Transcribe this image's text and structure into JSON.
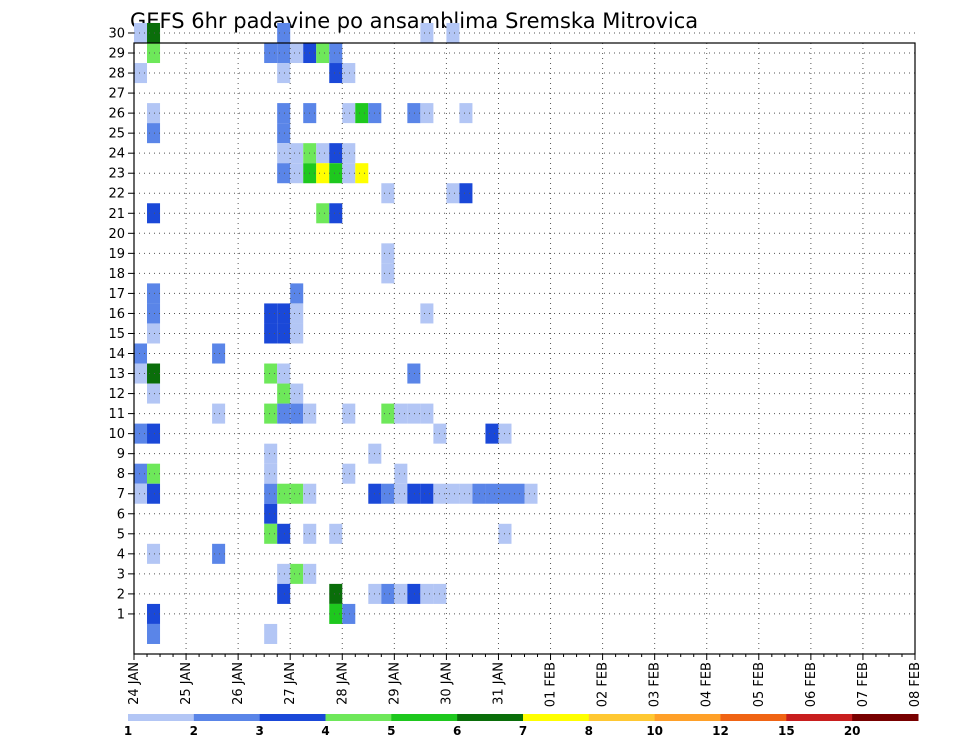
{
  "chart_data": {
    "type": "heatmap",
    "title": "GEFS 6hr padavine po ansamblima Sremska Mitrovica",
    "xlabel": "",
    "ylabel": "",
    "x_ticks": [
      "24 JAN",
      "25 JAN",
      "26 JAN",
      "27 JAN",
      "28 JAN",
      "29 JAN",
      "30 JAN",
      "31 JAN",
      "01 FEB",
      "02 FEB",
      "03 FEB",
      "04 FEB",
      "05 FEB",
      "06 FEB",
      "07 FEB",
      "08 FEB"
    ],
    "y_ticks": [
      1,
      2,
      3,
      4,
      5,
      6,
      7,
      8,
      9,
      10,
      11,
      12,
      13,
      14,
      15,
      16,
      17,
      18,
      19,
      20,
      21,
      22,
      23,
      24,
      25,
      26,
      27,
      28,
      29,
      30
    ],
    "x_step": "6hr",
    "grid": true,
    "legend": {
      "position": "bottom",
      "levels": [
        "1",
        "2",
        "3",
        "4",
        "5",
        "6",
        "7",
        "8",
        "10",
        "12",
        "15",
        "20"
      ],
      "colors": [
        "#b3c6f5",
        "#5a85e8",
        "#1a48d8",
        "#6ee85a",
        "#1ec81e",
        "#0a6e0a",
        "#ffff00",
        "#ffc832",
        "#ffa028",
        "#f06414",
        "#c81e1e",
        "#780000"
      ]
    },
    "cells": [
      [
        30,
        0,
        1
      ],
      [
        30,
        1,
        6
      ],
      [
        30,
        11,
        2
      ],
      [
        30,
        22,
        1
      ],
      [
        30,
        24,
        1
      ],
      [
        29,
        1,
        4
      ],
      [
        29,
        10,
        2
      ],
      [
        29,
        11,
        2
      ],
      [
        29,
        12,
        1
      ],
      [
        29,
        13,
        3
      ],
      [
        29,
        14,
        4
      ],
      [
        29,
        15,
        2
      ],
      [
        28,
        0,
        1
      ],
      [
        28,
        11,
        1
      ],
      [
        28,
        15,
        3
      ],
      [
        28,
        16,
        1
      ],
      [
        26,
        1,
        1
      ],
      [
        26,
        11,
        2
      ],
      [
        26,
        13,
        2
      ],
      [
        26,
        16,
        1
      ],
      [
        26,
        17,
        5
      ],
      [
        26,
        18,
        2
      ],
      [
        26,
        21,
        2
      ],
      [
        26,
        22,
        1
      ],
      [
        26,
        25,
        1
      ],
      [
        25,
        1,
        2
      ],
      [
        25,
        11,
        2
      ],
      [
        24,
        11,
        1
      ],
      [
        24,
        12,
        1
      ],
      [
        24,
        13,
        4
      ],
      [
        24,
        14,
        1
      ],
      [
        24,
        15,
        3
      ],
      [
        24,
        16,
        1
      ],
      [
        23,
        11,
        2
      ],
      [
        23,
        12,
        1
      ],
      [
        23,
        13,
        5
      ],
      [
        23,
        14,
        7
      ],
      [
        23,
        15,
        5
      ],
      [
        23,
        16,
        1
      ],
      [
        23,
        17,
        7
      ],
      [
        22,
        19,
        1
      ],
      [
        22,
        24,
        1
      ],
      [
        22,
        25,
        3
      ],
      [
        21,
        1,
        3
      ],
      [
        21,
        14,
        4
      ],
      [
        21,
        15,
        3
      ],
      [
        19,
        19,
        1
      ],
      [
        18,
        19,
        1
      ],
      [
        17,
        1,
        2
      ],
      [
        17,
        12,
        2
      ],
      [
        16,
        1,
        2
      ],
      [
        16,
        10,
        3
      ],
      [
        16,
        11,
        3
      ],
      [
        16,
        12,
        1
      ],
      [
        16,
        22,
        1
      ],
      [
        15,
        1,
        1
      ],
      [
        15,
        10,
        3
      ],
      [
        15,
        11,
        3
      ],
      [
        15,
        12,
        1
      ],
      [
        14,
        0,
        2
      ],
      [
        14,
        6,
        2
      ],
      [
        13,
        0,
        1
      ],
      [
        13,
        1,
        6
      ],
      [
        13,
        10,
        4
      ],
      [
        13,
        11,
        1
      ],
      [
        13,
        21,
        2
      ],
      [
        12,
        1,
        1
      ],
      [
        12,
        11,
        4
      ],
      [
        12,
        12,
        1
      ],
      [
        11,
        6,
        1
      ],
      [
        11,
        10,
        4
      ],
      [
        11,
        11,
        2
      ],
      [
        11,
        12,
        2
      ],
      [
        11,
        13,
        1
      ],
      [
        11,
        16,
        1
      ],
      [
        11,
        19,
        4
      ],
      [
        11,
        20,
        1
      ],
      [
        11,
        21,
        1
      ],
      [
        11,
        22,
        1
      ],
      [
        10,
        0,
        2
      ],
      [
        10,
        1,
        3
      ],
      [
        10,
        23,
        1
      ],
      [
        10,
        27,
        3
      ],
      [
        10,
        28,
        1
      ],
      [
        9,
        10,
        1
      ],
      [
        9,
        18,
        1
      ],
      [
        8,
        0,
        2
      ],
      [
        8,
        1,
        4
      ],
      [
        8,
        10,
        1
      ],
      [
        8,
        16,
        1
      ],
      [
        8,
        20,
        1
      ],
      [
        7,
        0,
        1
      ],
      [
        7,
        1,
        3
      ],
      [
        7,
        10,
        2
      ],
      [
        7,
        11,
        4
      ],
      [
        7,
        12,
        4
      ],
      [
        7,
        13,
        1
      ],
      [
        7,
        18,
        3
      ],
      [
        7,
        19,
        2
      ],
      [
        7,
        20,
        1
      ],
      [
        7,
        21,
        3
      ],
      [
        7,
        22,
        3
      ],
      [
        7,
        23,
        1
      ],
      [
        7,
        24,
        1
      ],
      [
        7,
        25,
        1
      ],
      [
        7,
        26,
        2
      ],
      [
        7,
        27,
        2
      ],
      [
        7,
        28,
        2
      ],
      [
        7,
        29,
        2
      ],
      [
        7,
        30,
        1
      ],
      [
        6,
        10,
        3
      ],
      [
        5,
        10,
        4
      ],
      [
        5,
        11,
        3
      ],
      [
        5,
        13,
        1
      ],
      [
        5,
        15,
        1
      ],
      [
        5,
        28,
        1
      ],
      [
        4,
        1,
        1
      ],
      [
        4,
        6,
        2
      ],
      [
        3,
        11,
        1
      ],
      [
        3,
        12,
        4
      ],
      [
        3,
        13,
        1
      ],
      [
        2,
        11,
        3
      ],
      [
        2,
        15,
        6
      ],
      [
        2,
        18,
        1
      ],
      [
        2,
        19,
        2
      ],
      [
        2,
        20,
        1
      ],
      [
        2,
        21,
        3
      ],
      [
        2,
        22,
        1
      ],
      [
        2,
        23,
        1
      ],
      [
        1,
        1,
        3
      ],
      [
        1,
        15,
        5
      ],
      [
        1,
        16,
        2
      ],
      [
        0,
        1,
        2
      ],
      [
        0,
        10,
        1
      ]
    ]
  }
}
